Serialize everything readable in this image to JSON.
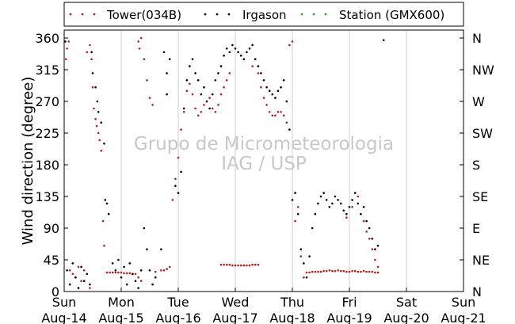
{
  "chart_data": {
    "type": "scatter",
    "ylabel": "Wind direction (degree)",
    "ylim": [
      0,
      360
    ],
    "yticks": [
      0,
      45,
      90,
      135,
      180,
      225,
      270,
      315,
      360
    ],
    "right_yticks": [
      {
        "value": 0,
        "label": "N"
      },
      {
        "value": 45,
        "label": "NE"
      },
      {
        "value": 90,
        "label": "E"
      },
      {
        "value": 135,
        "label": "SE"
      },
      {
        "value": 180,
        "label": "S"
      },
      {
        "value": 225,
        "label": "SW"
      },
      {
        "value": 270,
        "label": "W"
      },
      {
        "value": 315,
        "label": "NW"
      },
      {
        "value": 360,
        "label": "N"
      }
    ],
    "xlim": [
      0,
      7
    ],
    "xticks": [
      {
        "value": 0,
        "day": "Sun",
        "date": "Aug-14"
      },
      {
        "value": 1,
        "day": "Mon",
        "date": "Aug-15"
      },
      {
        "value": 2,
        "day": "Tue",
        "date": "Aug-16"
      },
      {
        "value": 3,
        "day": "Wed",
        "date": "Aug-17"
      },
      {
        "value": 4,
        "day": "Thu",
        "date": "Aug-18"
      },
      {
        "value": 5,
        "day": "Fri",
        "date": "Aug-19"
      },
      {
        "value": 6,
        "day": "Sat",
        "date": "Aug-20"
      },
      {
        "value": 7,
        "day": "Sun",
        "date": "Aug-21"
      }
    ],
    "grid": "vertical",
    "legend_placement": "top",
    "watermark": [
      "Grupo de Micrometeorologia",
      "IAG / USP"
    ],
    "series": [
      {
        "name": "Tower(034B)",
        "color": "#b22222",
        "points": [
          [
            0.03,
            330
          ],
          [
            0.05,
            345
          ],
          [
            0.08,
            355
          ],
          [
            0.1,
            30
          ],
          [
            0.15,
            25
          ],
          [
            0.2,
            20
          ],
          [
            0.25,
            35
          ],
          [
            0.3,
            15
          ],
          [
            0.35,
            30
          ],
          [
            0.4,
            340
          ],
          [
            0.45,
            5
          ],
          [
            0.45,
            350
          ],
          [
            0.48,
            330
          ],
          [
            0.5,
            290
          ],
          [
            0.52,
            260
          ],
          [
            0.55,
            245
          ],
          [
            0.57,
            235
          ],
          [
            0.6,
            225
          ],
          [
            0.62,
            215
          ],
          [
            0.65,
            200
          ],
          [
            0.68,
            100
          ],
          [
            0.7,
            65
          ],
          [
            0.75,
            27
          ],
          [
            0.8,
            27
          ],
          [
            0.85,
            27
          ],
          [
            0.9,
            27
          ],
          [
            0.95,
            27
          ],
          [
            1.0,
            27
          ],
          [
            1.05,
            26
          ],
          [
            1.1,
            26
          ],
          [
            1.15,
            26
          ],
          [
            1.2,
            25
          ],
          [
            1.25,
            25
          ],
          [
            1.3,
            20
          ],
          [
            1.35,
            15
          ],
          [
            1.3,
            355
          ],
          [
            1.32,
            345
          ],
          [
            1.35,
            360
          ],
          [
            1.4,
            330
          ],
          [
            1.45,
            300
          ],
          [
            1.5,
            275
          ],
          [
            1.55,
            265
          ],
          [
            1.6,
            28
          ],
          [
            1.7,
            30
          ],
          [
            1.75,
            30
          ],
          [
            1.8,
            32
          ],
          [
            1.85,
            35
          ],
          [
            1.9,
            130
          ],
          [
            1.95,
            160
          ],
          [
            2.0,
            190
          ],
          [
            2.05,
            230
          ],
          [
            2.1,
            255
          ],
          [
            2.15,
            285
          ],
          [
            2.2,
            295
          ],
          [
            2.25,
            280
          ],
          [
            2.3,
            260
          ],
          [
            2.35,
            250
          ],
          [
            2.4,
            255
          ],
          [
            2.45,
            265
          ],
          [
            2.5,
            270
          ],
          [
            2.55,
            275
          ],
          [
            2.6,
            260
          ],
          [
            2.65,
            255
          ],
          [
            2.7,
            265
          ],
          [
            2.75,
            280
          ],
          [
            2.8,
            290
          ],
          [
            2.85,
            300
          ],
          [
            2.9,
            310
          ],
          [
            2.75,
            38
          ],
          [
            2.8,
            38
          ],
          [
            2.85,
            38
          ],
          [
            2.9,
            38
          ],
          [
            2.95,
            37
          ],
          [
            3.0,
            37
          ],
          [
            3.05,
            37
          ],
          [
            3.1,
            37
          ],
          [
            3.15,
            37
          ],
          [
            3.2,
            37
          ],
          [
            3.25,
            37
          ],
          [
            3.3,
            38
          ],
          [
            3.35,
            38
          ],
          [
            3.4,
            38
          ],
          [
            3.3,
            320
          ],
          [
            3.35,
            330
          ],
          [
            3.4,
            310
          ],
          [
            3.45,
            290
          ],
          [
            3.5,
            275
          ],
          [
            3.55,
            265
          ],
          [
            3.6,
            255
          ],
          [
            3.65,
            250
          ],
          [
            3.7,
            250
          ],
          [
            3.75,
            255
          ],
          [
            3.8,
            255
          ],
          [
            3.85,
            250
          ],
          [
            3.9,
            240
          ],
          [
            3.95,
            350
          ],
          [
            4.0,
            355
          ],
          [
            4.05,
            100
          ],
          [
            4.1,
            120
          ],
          [
            4.15,
            50
          ],
          [
            4.2,
            20
          ],
          [
            4.25,
            27
          ],
          [
            4.3,
            27
          ],
          [
            4.35,
            28
          ],
          [
            4.4,
            28
          ],
          [
            4.45,
            28
          ],
          [
            4.5,
            28
          ],
          [
            4.55,
            29
          ],
          [
            4.6,
            29
          ],
          [
            4.65,
            30
          ],
          [
            4.7,
            29
          ],
          [
            4.75,
            29
          ],
          [
            4.8,
            30
          ],
          [
            4.85,
            29
          ],
          [
            4.9,
            29
          ],
          [
            4.95,
            28
          ],
          [
            5.0,
            28
          ],
          [
            5.05,
            29
          ],
          [
            5.1,
            29
          ],
          [
            5.15,
            28
          ],
          [
            5.2,
            28
          ],
          [
            5.25,
            29
          ],
          [
            5.3,
            28
          ],
          [
            5.35,
            28
          ],
          [
            5.4,
            28
          ],
          [
            5.45,
            27
          ],
          [
            5.5,
            27
          ],
          [
            4.95,
            105
          ],
          [
            5.05,
            120
          ],
          [
            5.15,
            135
          ],
          [
            5.25,
            100
          ],
          [
            5.3,
            85
          ],
          [
            5.35,
            75
          ],
          [
            5.4,
            60
          ],
          [
            5.45,
            45
          ],
          [
            5.5,
            35
          ]
        ]
      },
      {
        "name": "Irgason",
        "color": "#000000",
        "points": [
          [
            0.02,
            355
          ],
          [
            0.05,
            30
          ],
          [
            0.1,
            10
          ],
          [
            0.15,
            40
          ],
          [
            0.2,
            20
          ],
          [
            0.25,
            5
          ],
          [
            0.3,
            35
          ],
          [
            0.35,
            15
          ],
          [
            0.4,
            25
          ],
          [
            0.45,
            10
          ],
          [
            0.48,
            340
          ],
          [
            0.5,
            310
          ],
          [
            0.55,
            290
          ],
          [
            0.58,
            270
          ],
          [
            0.6,
            255
          ],
          [
            0.65,
            240
          ],
          [
            0.7,
            210
          ],
          [
            0.72,
            130
          ],
          [
            0.75,
            125
          ],
          [
            0.78,
            110
          ],
          [
            0.85,
            40
          ],
          [
            0.9,
            30
          ],
          [
            0.95,
            45
          ],
          [
            1.0,
            20
          ],
          [
            1.05,
            35
          ],
          [
            1.1,
            10
          ],
          [
            1.15,
            40
          ],
          [
            1.2,
            25
          ],
          [
            1.25,
            15
          ],
          [
            1.3,
            5
          ],
          [
            1.35,
            30
          ],
          [
            1.4,
            90
          ],
          [
            1.45,
            60
          ],
          [
            1.5,
            30
          ],
          [
            1.55,
            10
          ],
          [
            1.6,
            20
          ],
          [
            1.7,
            60
          ],
          [
            1.75,
            340
          ],
          [
            1.8,
            310
          ],
          [
            1.8,
            280
          ],
          [
            1.85,
            330
          ],
          [
            1.95,
            150
          ],
          [
            2.0,
            140
          ],
          [
            2.05,
            170
          ],
          [
            2.1,
            260
          ],
          [
            2.15,
            300
          ],
          [
            2.2,
            320
          ],
          [
            2.25,
            330
          ],
          [
            2.3,
            310
          ],
          [
            2.35,
            300
          ],
          [
            2.4,
            280
          ],
          [
            2.45,
            290
          ],
          [
            2.5,
            270
          ],
          [
            2.55,
            260
          ],
          [
            2.6,
            280
          ],
          [
            2.65,
            300
          ],
          [
            2.7,
            310
          ],
          [
            2.75,
            320
          ],
          [
            2.8,
            335
          ],
          [
            2.85,
            345
          ],
          [
            2.9,
            340
          ],
          [
            2.95,
            350
          ],
          [
            3.0,
            345
          ],
          [
            3.05,
            340
          ],
          [
            3.1,
            335
          ],
          [
            3.15,
            330
          ],
          [
            3.2,
            340
          ],
          [
            3.25,
            345
          ],
          [
            3.3,
            350
          ],
          [
            3.35,
            330
          ],
          [
            3.4,
            320
          ],
          [
            3.45,
            310
          ],
          [
            3.5,
            300
          ],
          [
            3.55,
            290
          ],
          [
            3.6,
            285
          ],
          [
            3.65,
            280
          ],
          [
            3.7,
            275
          ],
          [
            3.75,
            285
          ],
          [
            3.8,
            290
          ],
          [
            3.85,
            300
          ],
          [
            3.9,
            270
          ],
          [
            3.95,
            230
          ],
          [
            4.0,
            130
          ],
          [
            4.05,
            140
          ],
          [
            4.1,
            110
          ],
          [
            4.15,
            60
          ],
          [
            4.2,
            40
          ],
          [
            4.25,
            20
          ],
          [
            4.3,
            50
          ],
          [
            4.35,
            90
          ],
          [
            4.4,
            110
          ],
          [
            4.45,
            125
          ],
          [
            4.5,
            135
          ],
          [
            4.55,
            140
          ],
          [
            4.6,
            130
          ],
          [
            4.65,
            120
          ],
          [
            4.7,
            125
          ],
          [
            4.75,
            135
          ],
          [
            4.8,
            130
          ],
          [
            4.85,
            125
          ],
          [
            4.9,
            115
          ],
          [
            4.95,
            110
          ],
          [
            5.0,
            120
          ],
          [
            5.05,
            130
          ],
          [
            5.1,
            140
          ],
          [
            5.15,
            125
          ],
          [
            5.2,
            110
          ],
          [
            5.25,
            120
          ],
          [
            5.3,
            100
          ],
          [
            5.35,
            90
          ],
          [
            5.4,
            75
          ],
          [
            5.45,
            60
          ],
          [
            5.5,
            65
          ],
          [
            5.6,
            357
          ]
        ]
      },
      {
        "name": "Station (GMX600)",
        "color": "#2ca02c",
        "points": []
      }
    ]
  }
}
